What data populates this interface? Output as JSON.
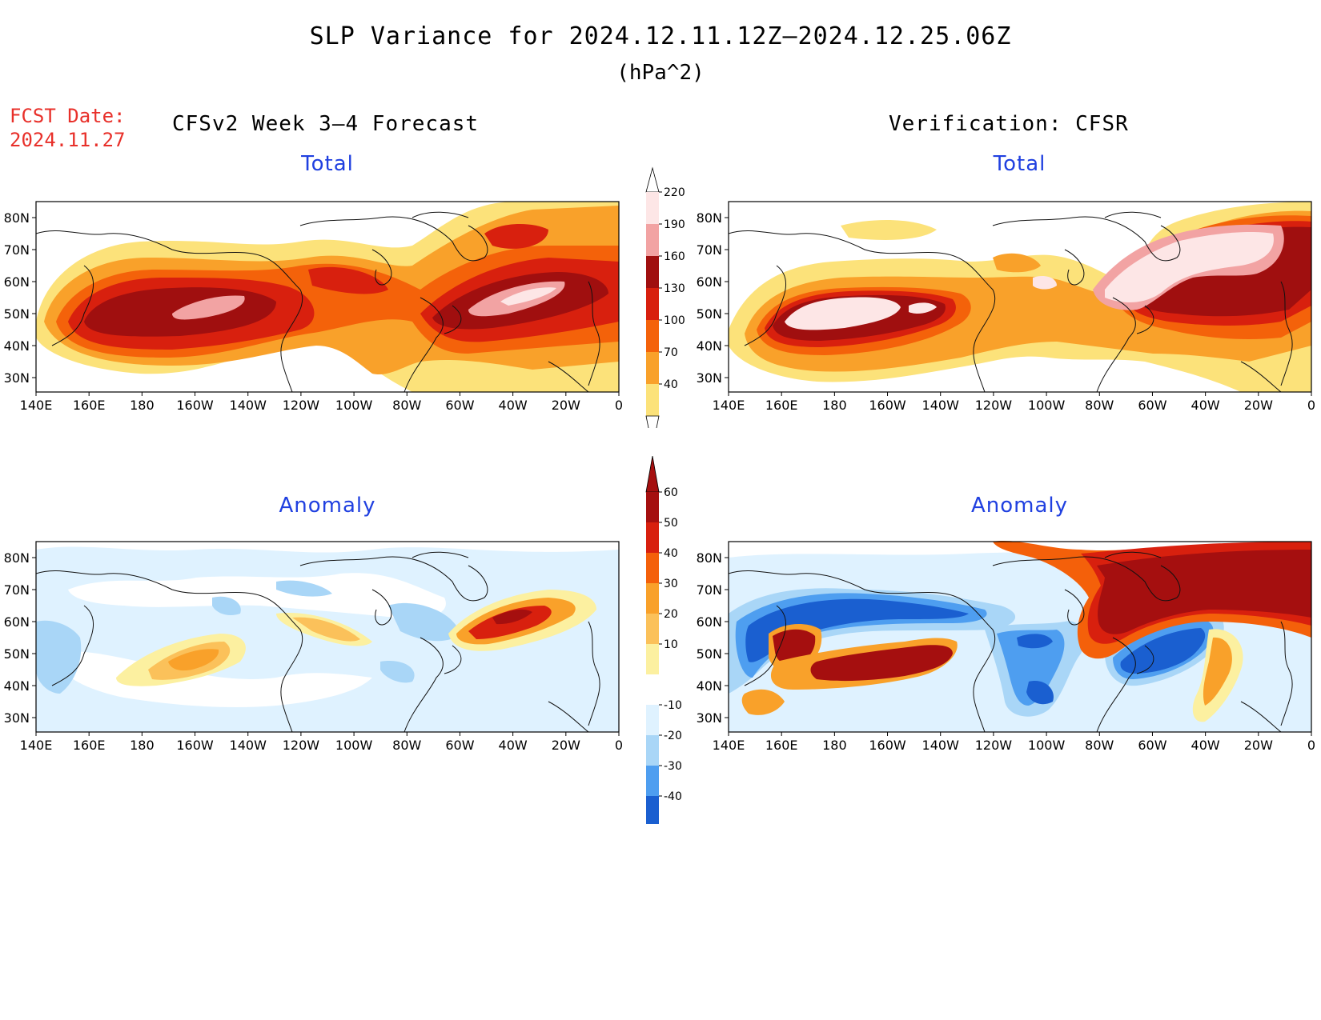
{
  "header": {
    "title": "SLP Variance for 2024.12.11.12Z–2024.12.25.06Z",
    "units": "(hPa^2)",
    "fcst_label": "FCST Date:",
    "fcst_date": "2024.11.27",
    "left_heading": "CFSv2 Week 3–4 Forecast",
    "right_heading": "Verification: CFSR"
  },
  "panels": {
    "tl_title": "Total",
    "tr_title": "Total",
    "bl_title": "Anomaly",
    "br_title": "Anomaly"
  },
  "axes": {
    "lon_ticks": [
      "140E",
      "160E",
      "180",
      "160W",
      "140W",
      "120W",
      "100W",
      "80W",
      "60W",
      "40W",
      "20W",
      "0"
    ],
    "lat_ticks": [
      "80N",
      "70N",
      "60N",
      "50N",
      "40N",
      "30N"
    ]
  },
  "colorbars": {
    "total": {
      "labels": [
        "220",
        "190",
        "160",
        "130",
        "100",
        "70",
        "40"
      ],
      "colors": [
        "#fde6e6",
        "#f2a3a3",
        "#a00f0f",
        "#d8200e",
        "#f4620a",
        "#f9a12a",
        "#fce27a"
      ]
    },
    "anomaly": {
      "labels": [
        "60",
        "50",
        "40",
        "30",
        "20",
        "10",
        "-10",
        "-20",
        "-30",
        "-40"
      ],
      "colors": [
        "#a50f0f",
        "#d8200e",
        "#f4600a",
        "#f9a12a",
        "#fbc15a",
        "#fcf0a0",
        "#ffffff",
        "#dff2ff",
        "#a9d6f7",
        "#4e9ef0",
        "#1a5fd0"
      ]
    }
  }
}
